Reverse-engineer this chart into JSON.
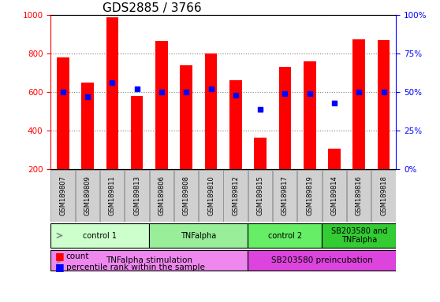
{
  "title": "GDS2885 / 3766",
  "samples": [
    "GSM189807",
    "GSM189809",
    "GSM189811",
    "GSM189813",
    "GSM189806",
    "GSM189808",
    "GSM189810",
    "GSM189812",
    "GSM189815",
    "GSM189817",
    "GSM189819",
    "GSM189814",
    "GSM189816",
    "GSM189818"
  ],
  "counts": [
    780,
    650,
    990,
    580,
    865,
    740,
    800,
    660,
    365,
    730,
    760,
    305,
    875,
    870
  ],
  "percentile_ranks": [
    50,
    47,
    56,
    52,
    50,
    50,
    52,
    48,
    39,
    49,
    49,
    43,
    50,
    50
  ],
  "ylim": [
    200,
    1000
  ],
  "yticks": [
    200,
    400,
    600,
    800,
    1000
  ],
  "y2ticks": [
    0,
    25,
    50,
    75,
    100
  ],
  "bar_color": "#FF0000",
  "dot_color": "#0000FF",
  "bar_width": 0.5,
  "agent_groups": [
    {
      "label": "control 1",
      "start": 0,
      "end": 4,
      "color": "#CCFFCC"
    },
    {
      "label": "TNFalpha",
      "start": 4,
      "end": 8,
      "color": "#99EE99"
    },
    {
      "label": "control 2",
      "start": 8,
      "end": 11,
      "color": "#66EE66"
    },
    {
      "label": "SB203580 and\nTNFalpha",
      "start": 11,
      "end": 14,
      "color": "#33CC33"
    }
  ],
  "protocol_groups": [
    {
      "label": "TNFalpha stimulation",
      "start": 0,
      "end": 8,
      "color": "#EE88EE"
    },
    {
      "label": "SB203580 preincubation",
      "start": 8,
      "end": 14,
      "color": "#DD44DD"
    }
  ],
  "legend_count_color": "#FF0000",
  "legend_dot_color": "#0000FF",
  "title_fontsize": 11,
  "left_axis_color": "#FF0000",
  "right_axis_color": "#0000FF",
  "sample_box_color": "#D0D0D0",
  "sample_text_fontsize": 6
}
